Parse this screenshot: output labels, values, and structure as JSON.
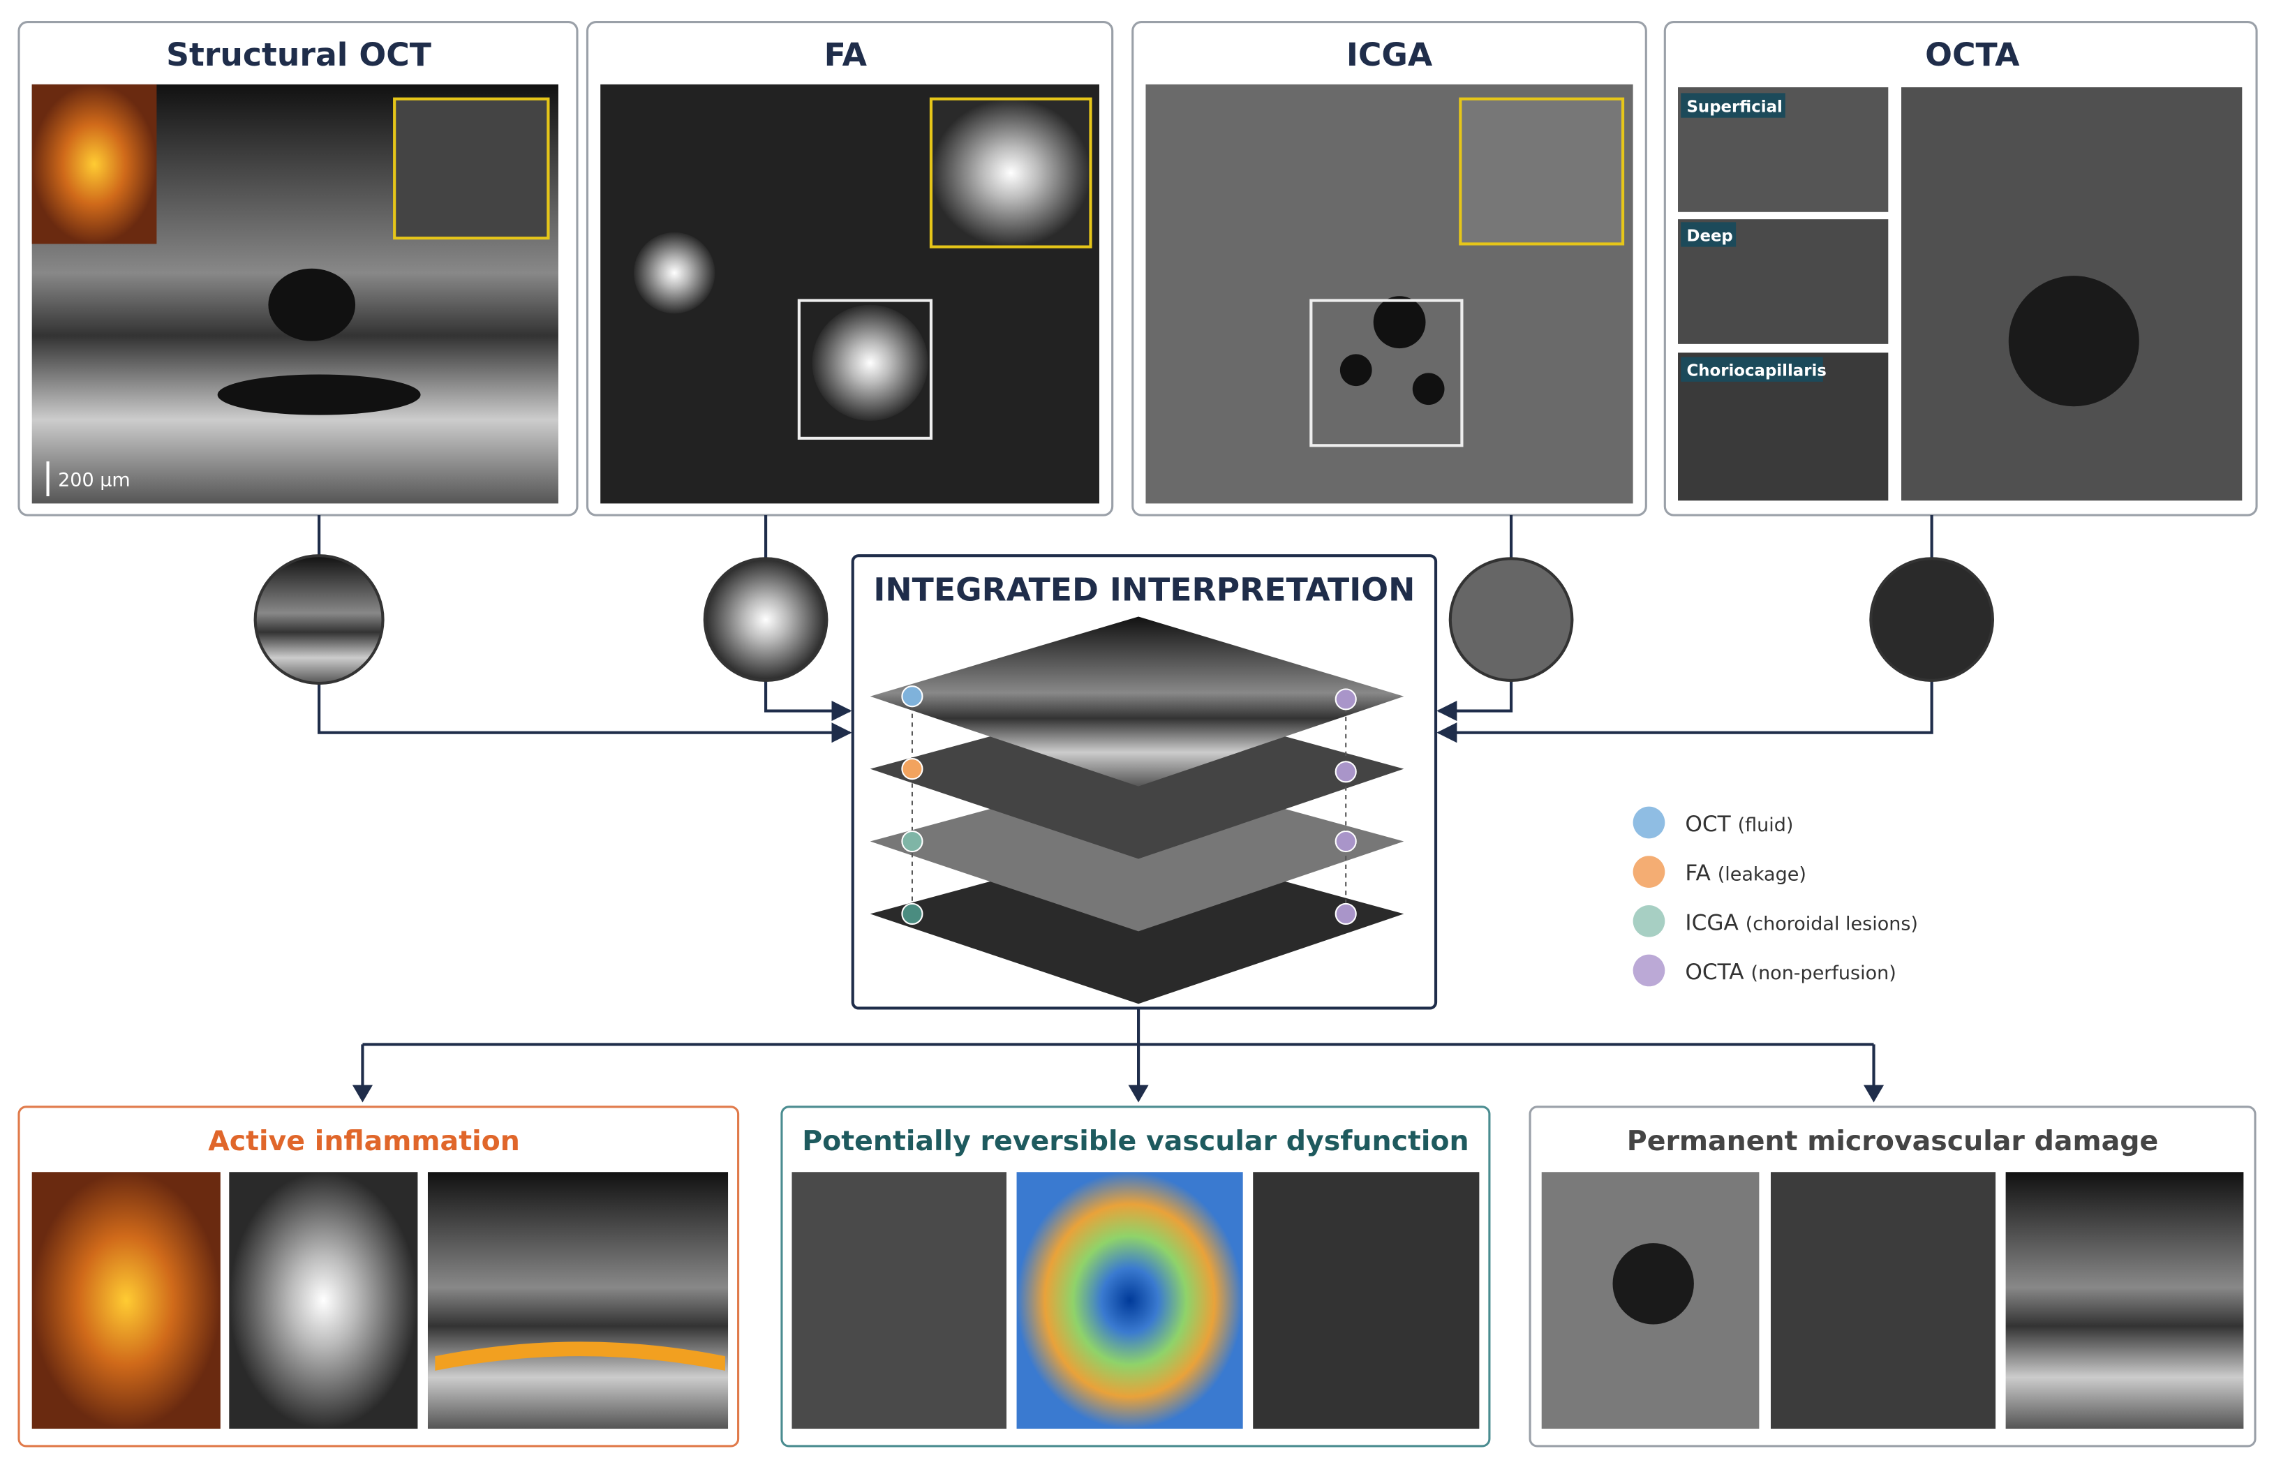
{
  "panels": [
    {
      "title": "Structural OCT",
      "scale_bar": "200 µm"
    },
    {
      "title": "FA"
    },
    {
      "title": "ICGA"
    },
    {
      "title": "OCTA",
      "layers": [
        "Superficial",
        "Deep",
        "Choriocapillaris"
      ]
    }
  ],
  "center": {
    "title": "INTEGRATED INTERPRETATION"
  },
  "legend": [
    {
      "name": "OCT",
      "note": "(fluid)"
    },
    {
      "name": "FA",
      "note": "(leakage)"
    },
    {
      "name": "ICGA",
      "note": "(choroidal lesions)"
    },
    {
      "name": "OCTA",
      "note": "(non-perfusion)"
    }
  ],
  "outcomes": [
    {
      "title": "Active inflammation"
    },
    {
      "title": "Potentially reversible vascular dysfunction"
    },
    {
      "title": "Permanent microvascular damage"
    }
  ]
}
